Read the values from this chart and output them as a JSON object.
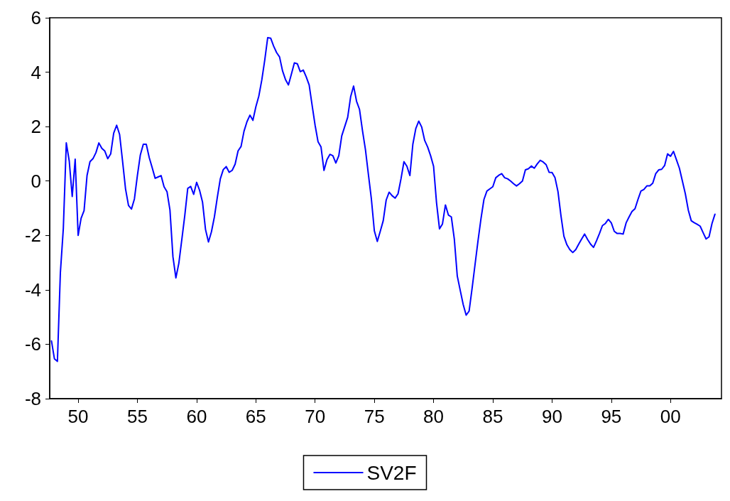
{
  "chart_data": {
    "type": "line",
    "legend": "bottom",
    "grid": false,
    "marker": "none",
    "line_style": "solid",
    "xlim": [
      1947.6,
      2004.3
    ],
    "xticks": [
      {
        "value": 1950,
        "label": "50"
      },
      {
        "value": 1955,
        "label": "55"
      },
      {
        "value": 1960,
        "label": "60"
      },
      {
        "value": 1965,
        "label": "65"
      },
      {
        "value": 1970,
        "label": "70"
      },
      {
        "value": 1975,
        "label": "75"
      },
      {
        "value": 1980,
        "label": "80"
      },
      {
        "value": 1985,
        "label": "85"
      },
      {
        "value": 1990,
        "label": "90"
      },
      {
        "value": 1995,
        "label": "95"
      },
      {
        "value": 2000,
        "label": "00"
      }
    ],
    "ylim": [
      -8,
      6
    ],
    "yticks": [
      -8,
      -6,
      -4,
      -2,
      0,
      2,
      4,
      6
    ],
    "x": [
      1947.75,
      1948,
      1948.25,
      1948.5,
      1948.75,
      1949,
      1949.25,
      1949.5,
      1949.75,
      1950,
      1950.25,
      1950.5,
      1950.75,
      1951,
      1951.25,
      1951.5,
      1951.75,
      1952,
      1952.25,
      1952.5,
      1952.75,
      1953,
      1953.25,
      1953.5,
      1953.75,
      1954,
      1954.25,
      1954.5,
      1954.75,
      1955,
      1955.25,
      1955.5,
      1955.75,
      1956,
      1956.25,
      1956.5,
      1956.75,
      1957,
      1957.25,
      1957.5,
      1957.75,
      1958,
      1958.25,
      1958.5,
      1958.75,
      1959,
      1959.25,
      1959.5,
      1959.75,
      1960,
      1960.25,
      1960.5,
      1960.75,
      1961,
      1961.25,
      1961.5,
      1961.75,
      1962,
      1962.25,
      1962.5,
      1962.75,
      1963,
      1963.25,
      1963.5,
      1963.75,
      1964,
      1964.25,
      1964.5,
      1964.75,
      1965,
      1965.25,
      1965.5,
      1965.75,
      1966,
      1966.25,
      1966.5,
      1966.75,
      1967,
      1967.25,
      1967.5,
      1967.75,
      1968,
      1968.25,
      1968.5,
      1968.75,
      1969,
      1969.25,
      1969.5,
      1969.75,
      1970,
      1970.25,
      1970.5,
      1970.75,
      1971,
      1971.25,
      1971.5,
      1971.75,
      1972,
      1972.25,
      1972.5,
      1972.75,
      1973,
      1973.25,
      1973.5,
      1973.75,
      1974,
      1974.25,
      1974.5,
      1974.75,
      1975,
      1975.25,
      1975.5,
      1975.75,
      1976,
      1976.25,
      1976.5,
      1976.75,
      1977,
      1977.25,
      1977.5,
      1977.75,
      1978,
      1978.25,
      1978.5,
      1978.75,
      1979,
      1979.25,
      1979.5,
      1979.75,
      1980,
      1980.25,
      1980.5,
      1980.75,
      1981,
      1981.25,
      1981.5,
      1981.75,
      1982,
      1982.25,
      1982.5,
      1982.75,
      1983,
      1983.25,
      1983.5,
      1983.75,
      1984,
      1984.25,
      1984.5,
      1984.75,
      1985,
      1985.25,
      1985.5,
      1985.75,
      1986,
      1986.25,
      1986.5,
      1986.75,
      1987,
      1987.25,
      1987.5,
      1987.75,
      1988,
      1988.25,
      1988.5,
      1988.75,
      1989,
      1989.25,
      1989.5,
      1989.75,
      1990,
      1990.25,
      1990.5,
      1990.75,
      1991,
      1991.25,
      1991.5,
      1991.75,
      1992,
      1992.25,
      1992.5,
      1992.75,
      1993,
      1993.25,
      1993.5,
      1993.75,
      1994,
      1994.25,
      1994.5,
      1994.75,
      1995,
      1995.25,
      1995.5,
      1995.75,
      1996,
      1996.25,
      1996.5,
      1996.75,
      1997,
      1997.25,
      1997.5,
      1997.75,
      1998,
      1998.25,
      1998.5,
      1998.75,
      1999,
      1999.25,
      1999.5,
      1999.75,
      2000,
      2000.25,
      2000.5,
      2000.75,
      2001,
      2001.25,
      2001.5,
      2001.75,
      2002,
      2002.25,
      2002.5,
      2002.75,
      2003,
      2003.25,
      2003.5,
      2003.75
    ],
    "series": [
      {
        "name": "SV2F",
        "color": "#0000ff",
        "values": [
          -5.88,
          -6.54,
          -6.63,
          -3.37,
          -1.74,
          1.4,
          0.73,
          -0.57,
          0.8,
          -2.0,
          -1.37,
          -1.09,
          0.2,
          0.71,
          0.82,
          1.04,
          1.4,
          1.2,
          1.1,
          0.82,
          1.0,
          1.76,
          2.05,
          1.71,
          0.73,
          -0.29,
          -0.9,
          -1.03,
          -0.66,
          0.2,
          0.96,
          1.35,
          1.35,
          0.86,
          0.49,
          0.1,
          0.15,
          0.2,
          -0.21,
          -0.39,
          -1.07,
          -2.78,
          -3.56,
          -3.02,
          -2.15,
          -1.27,
          -0.27,
          -0.2,
          -0.49,
          -0.05,
          -0.34,
          -0.78,
          -1.78,
          -2.24,
          -1.87,
          -1.32,
          -0.59,
          0.08,
          0.42,
          0.53,
          0.32,
          0.39,
          0.62,
          1.11,
          1.27,
          1.83,
          2.18,
          2.42,
          2.23,
          2.73,
          3.12,
          3.71,
          4.44,
          5.27,
          5.25,
          4.96,
          4.72,
          4.56,
          4.05,
          3.73,
          3.53,
          3.93,
          4.34,
          4.31,
          4.02,
          4.08,
          3.83,
          3.53,
          2.78,
          2.05,
          1.44,
          1.25,
          0.39,
          0.78,
          0.98,
          0.93,
          0.66,
          0.93,
          1.66,
          2.0,
          2.34,
          3.1,
          3.49,
          2.93,
          2.63,
          1.85,
          1.15,
          0.24,
          -0.66,
          -1.83,
          -2.22,
          -1.85,
          -1.46,
          -0.7,
          -0.41,
          -0.54,
          -0.63,
          -0.47,
          0.08,
          0.71,
          0.54,
          0.2,
          1.35,
          1.93,
          2.2,
          1.98,
          1.49,
          1.25,
          0.93,
          0.54,
          -0.8,
          -1.76,
          -1.58,
          -0.88,
          -1.25,
          -1.32,
          -2.13,
          -3.49,
          -4.02,
          -4.54,
          -4.93,
          -4.78,
          -3.95,
          -3.07,
          -2.2,
          -1.39,
          -0.68,
          -0.37,
          -0.29,
          -0.21,
          0.12,
          0.21,
          0.27,
          0.12,
          0.08,
          0.0,
          -0.1,
          -0.18,
          -0.1,
          0.0,
          0.41,
          0.45,
          0.55,
          0.47,
          0.63,
          0.76,
          0.7,
          0.6,
          0.32,
          0.31,
          0.12,
          -0.39,
          -1.27,
          -2.03,
          -2.34,
          -2.52,
          -2.63,
          -2.52,
          -2.32,
          -2.13,
          -1.95,
          -2.15,
          -2.32,
          -2.44,
          -2.2,
          -1.93,
          -1.64,
          -1.56,
          -1.41,
          -1.54,
          -1.85,
          -1.93,
          -1.93,
          -1.95,
          -1.54,
          -1.32,
          -1.12,
          -1.02,
          -0.68,
          -0.37,
          -0.31,
          -0.18,
          -0.18,
          -0.08,
          0.27,
          0.41,
          0.43,
          0.57,
          1.0,
          0.91,
          1.09,
          0.78,
          0.47,
          0.0,
          -0.47,
          -1.07,
          -1.46,
          -1.53,
          -1.59,
          -1.66,
          -1.9,
          -2.13,
          -2.05,
          -1.56,
          -1.22
        ]
      }
    ]
  }
}
